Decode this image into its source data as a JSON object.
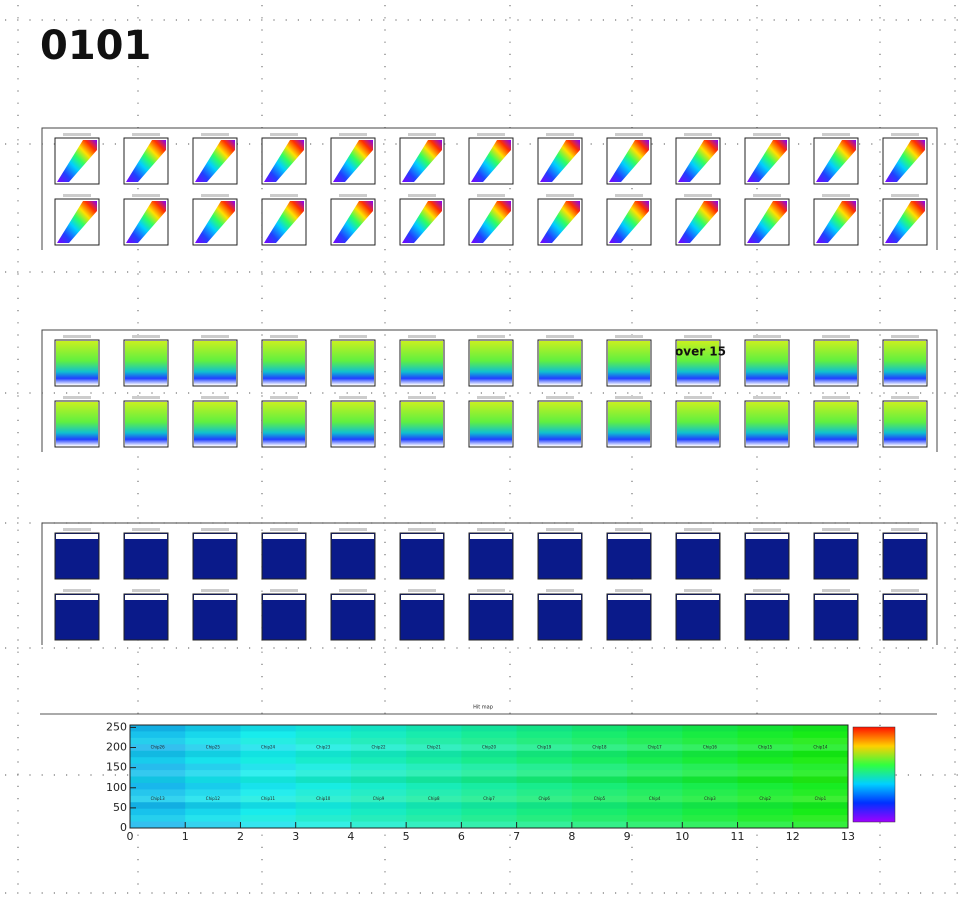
{
  "title": "0101",
  "annotation": "over 15",
  "hitmap": {
    "title": "Hit map",
    "xlim": [
      0,
      13
    ],
    "ylim": [
      0,
      256
    ],
    "xticks": [
      0,
      1,
      2,
      3,
      4,
      5,
      6,
      7,
      8,
      9,
      10,
      11,
      12,
      13
    ],
    "yticks": [
      0,
      50,
      100,
      150,
      200,
      250
    ],
    "chips_top": [
      "Chip26",
      "Chip25",
      "Chip24",
      "Chip23",
      "Chip22",
      "Chip21",
      "Chip20",
      "Chip19",
      "Chip18",
      "Chip17",
      "Chip16",
      "Chip15",
      "Chip14"
    ],
    "chips_bottom": [
      "Chip13",
      "Chip12",
      "Chip11",
      "Chip10",
      "Chip9",
      "Chip8",
      "Chip7",
      "Chip6",
      "Chip5",
      "Chip4",
      "Chip3",
      "Chip2",
      "Chip1"
    ]
  }
}
